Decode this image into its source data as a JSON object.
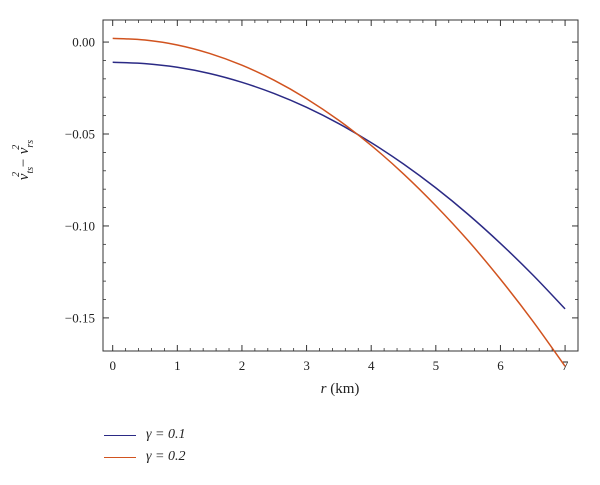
{
  "chart_data": {
    "type": "line",
    "xlabel_var": "r",
    "xlabel_unit": "(km)",
    "ylabel": "v_ts^2 - v_rs^2",
    "xlim": [
      -0.15,
      7.2
    ],
    "ylim": [
      -0.168,
      0.012
    ],
    "xticks": [
      0,
      1,
      2,
      3,
      4,
      5,
      6,
      7
    ],
    "yticks": [
      0.0,
      -0.05,
      -0.1,
      -0.15
    ],
    "ytick_labels": [
      "0.00",
      "-0.05",
      "-0.10",
      "-0.15"
    ],
    "x": [
      0,
      0.5,
      1,
      1.5,
      2,
      2.5,
      3,
      3.5,
      4,
      4.5,
      5,
      5.5,
      6,
      6.5,
      7
    ],
    "series": [
      {
        "name": "γ = 0.1",
        "color": "#2b2a85",
        "values": [
          -0.011,
          -0.0117,
          -0.0137,
          -0.0171,
          -0.0219,
          -0.028,
          -0.0355,
          -0.0444,
          -0.0547,
          -0.0663,
          -0.0793,
          -0.0937,
          -0.1095,
          -0.1266,
          -0.1451
        ]
      },
      {
        "name": "γ = 0.2",
        "color": "#d1531f",
        "values": [
          0.002,
          0.0011,
          -0.0016,
          -0.0062,
          -0.0126,
          -0.0208,
          -0.0308,
          -0.0426,
          -0.0562,
          -0.0717,
          -0.089,
          -0.108,
          -0.129,
          -0.1517,
          -0.1763
        ]
      }
    ],
    "legend_position": "bottom-left"
  }
}
